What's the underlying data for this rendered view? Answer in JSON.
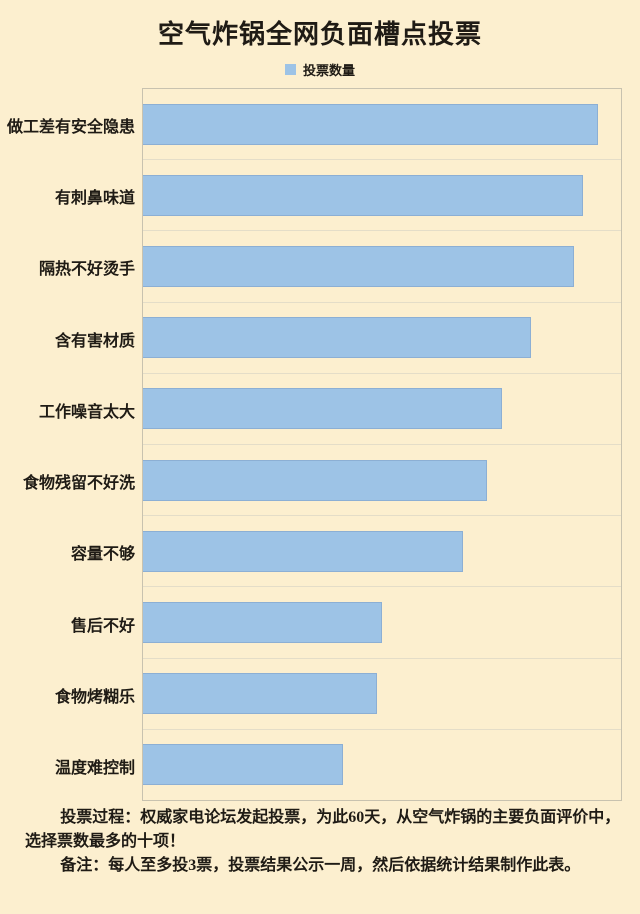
{
  "title": "空气炸锅全网负面槽点投票",
  "legend": {
    "label": "投票数量",
    "swatch": "blue-square-icon"
  },
  "chart_data": {
    "type": "bar",
    "orientation": "horizontal",
    "title": "空气炸锅全网负面槽点投票",
    "series_name": "投票数量",
    "categories": [
      "做工差有安全隐患",
      "有刺鼻味道",
      "隔热不好烫手",
      "含有害材质",
      "工作噪音太大",
      "食物残留不好洗",
      "容量不够",
      "售后不好",
      "食物烤糊乐",
      "温度难控制"
    ],
    "values": [
      95.2,
      92.1,
      90.2,
      81.1,
      75.1,
      71.9,
      67.0,
      49.9,
      48.9,
      41.8
    ],
    "value_note": "x-axis has no visible tick labels; values are estimated bar lengths as percent of plot width",
    "xlabel": "",
    "ylabel": "",
    "xlim": [
      0,
      100
    ],
    "grid": "horizontal category separators only",
    "legend_position": "top-center"
  },
  "footer": {
    "process_note": "投票过程：权威家电论坛发起投票，为此60天，从空气炸锅的主要负面评价中，选择票数最多的十项！",
    "remark_note": "备注：每人至多投3票，投票结果公示一周，然后依据统计结果制作此表。"
  },
  "colors": {
    "background": "#FCEFCF",
    "bar_fill": "#9DC3E6",
    "bar_border": "#8CAFD4",
    "plot_border": "#C8C2AF",
    "gridline": "#E4DDC8",
    "text": "#1F1B15"
  }
}
